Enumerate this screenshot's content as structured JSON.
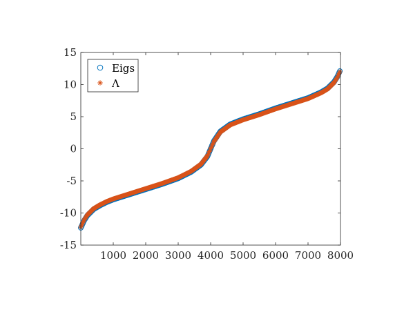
{
  "chart_data": {
    "type": "scatter",
    "title": "",
    "xlabel": "",
    "ylabel": "",
    "xlim": [
      0,
      8000
    ],
    "ylim": [
      -15,
      15
    ],
    "grid": false,
    "legend_placement": "top-left",
    "x_ticks": [
      {
        "value": 1000,
        "label": "1000"
      },
      {
        "value": 2000,
        "label": "2000"
      },
      {
        "value": 3000,
        "label": "3000"
      },
      {
        "value": 4000,
        "label": "4000"
      },
      {
        "value": 5000,
        "label": "5000"
      },
      {
        "value": 6000,
        "label": "6000"
      },
      {
        "value": 7000,
        "label": "7000"
      },
      {
        "value": 8000,
        "label": "8000"
      }
    ],
    "y_ticks": [
      {
        "value": -15,
        "label": "-15"
      },
      {
        "value": -10,
        "label": "-10"
      },
      {
        "value": -5,
        "label": "-5"
      },
      {
        "value": 0,
        "label": "0"
      },
      {
        "value": 5,
        "label": "5"
      },
      {
        "value": 10,
        "label": "10"
      },
      {
        "value": 15,
        "label": "15"
      }
    ],
    "series": [
      {
        "name": "Eigs",
        "marker": "circle",
        "color": "#0072BD",
        "x": [
          1,
          100,
          200,
          400,
          600,
          800,
          1000,
          1500,
          2000,
          2500,
          3000,
          3400,
          3700,
          3900,
          4000,
          4100,
          4300,
          4600,
          5000,
          5500,
          6000,
          6500,
          7000,
          7400,
          7600,
          7800,
          7900,
          8000
        ],
        "y": [
          -12.3,
          -11.2,
          -10.4,
          -9.4,
          -8.8,
          -8.3,
          -7.9,
          -7.1,
          -6.3,
          -5.5,
          -4.6,
          -3.6,
          -2.5,
          -1.2,
          0,
          1.2,
          2.7,
          3.8,
          4.6,
          5.4,
          6.3,
          7.1,
          7.9,
          8.8,
          9.4,
          10.4,
          11.2,
          12.3
        ]
      },
      {
        "name": "Λ",
        "marker": "asterisk",
        "color": "#D95319",
        "x": [
          1,
          100,
          200,
          400,
          600,
          800,
          1000,
          1500,
          2000,
          2500,
          3000,
          3400,
          3700,
          3900,
          4000,
          4100,
          4300,
          4600,
          5000,
          5500,
          6000,
          6500,
          7000,
          7400,
          7600,
          7800,
          7900,
          8000
        ],
        "y": [
          -12.2,
          -11.1,
          -10.3,
          -9.3,
          -8.7,
          -8.2,
          -7.8,
          -7.0,
          -6.2,
          -5.4,
          -4.5,
          -3.5,
          -2.4,
          -1.1,
          0,
          1.1,
          2.6,
          3.7,
          4.5,
          5.3,
          6.2,
          7.0,
          7.8,
          8.7,
          9.3,
          10.3,
          11.1,
          12.2
        ]
      }
    ]
  }
}
